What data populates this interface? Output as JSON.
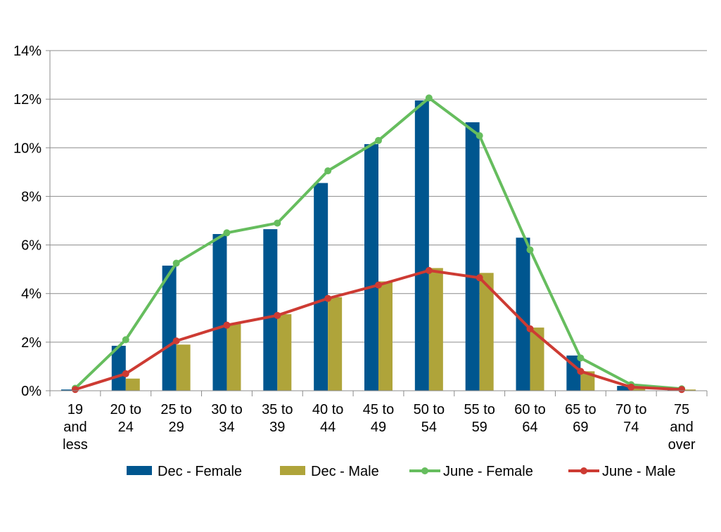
{
  "chart_data": {
    "type": "bar",
    "categories": [
      "19 and less",
      "20 to 24",
      "25 to 29",
      "30 to 34",
      "35 to 39",
      "40 to 44",
      "45 to 49",
      "50 to 54",
      "55 to 59",
      "60 to 64",
      "65 to 69",
      "70 to 74",
      "75 and over"
    ],
    "category_lines": [
      [
        "19",
        "and",
        "less"
      ],
      [
        "20 to",
        "24"
      ],
      [
        "25 to",
        "29"
      ],
      [
        "30 to",
        "34"
      ],
      [
        "35 to",
        "39"
      ],
      [
        "40 to",
        "44"
      ],
      [
        "45 to",
        "49"
      ],
      [
        "50 to",
        "54"
      ],
      [
        "55 to",
        "59"
      ],
      [
        "60 to",
        "64"
      ],
      [
        "65 to",
        "69"
      ],
      [
        "70 to",
        "74"
      ],
      [
        "75",
        "and",
        "over"
      ]
    ],
    "series": [
      {
        "name": "Dec - Female",
        "type": "bar",
        "color": "#00568F",
        "values": [
          0.05,
          1.85,
          5.15,
          6.45,
          6.65,
          8.55,
          10.15,
          11.95,
          11.05,
          6.3,
          1.45,
          0.2,
          0.05
        ]
      },
      {
        "name": "Dec - Male",
        "type": "bar",
        "color": "#AFA43A",
        "values": [
          0.0,
          0.5,
          1.9,
          2.75,
          3.15,
          3.85,
          4.5,
          5.05,
          4.85,
          2.6,
          0.8,
          0.15,
          0.05
        ]
      },
      {
        "name": "June - Female",
        "type": "line",
        "color": "#66BD5E",
        "values": [
          0.1,
          2.1,
          5.25,
          6.5,
          6.9,
          9.05,
          10.3,
          12.05,
          10.5,
          5.8,
          1.35,
          0.25,
          0.08
        ]
      },
      {
        "name": "June - Male",
        "type": "line",
        "color": "#CD3B33",
        "values": [
          0.05,
          0.7,
          2.05,
          2.7,
          3.1,
          3.8,
          4.35,
          4.95,
          4.65,
          2.55,
          0.8,
          0.15,
          0.05
        ]
      }
    ],
    "y_ticks": [
      "0%",
      "2%",
      "4%",
      "6%",
      "8%",
      "10%",
      "12%",
      "14%"
    ],
    "ylim": [
      0,
      14
    ],
    "title": "",
    "xlabel": "",
    "ylabel": "",
    "grid": true,
    "legend_position": "bottom"
  }
}
